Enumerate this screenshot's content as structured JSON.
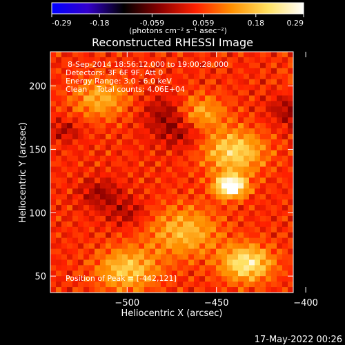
{
  "chart_data": {
    "type": "heatmap",
    "title": "Reconstructed RHESSI Image",
    "xlabel": "Heliocentric X (arcsec)",
    "ylabel": "Heliocentric Y (arcsec)",
    "xlim": [
      -543,
      -407
    ],
    "ylim": [
      37,
      227
    ],
    "x_ticks": [
      -500,
      -450,
      -400
    ],
    "y_ticks": [
      50,
      100,
      150,
      200
    ],
    "colorbar": {
      "unit_label": "(photons cm⁻² s⁻¹ asec⁻²)",
      "range": [
        -0.29,
        0.29
      ],
      "tick_labels": [
        "-0.29",
        "-0.18",
        "-0.059",
        "0.059",
        "0.18",
        "0.29"
      ],
      "colors": [
        "#0000ff",
        "#3300cc",
        "#000000",
        "#8a0000",
        "#ff2000",
        "#ff9000",
        "#ffe060",
        "#ffffff"
      ]
    },
    "info_lines": [
      "8-Sep-2014 18:56:12.000 to 19:00:28.000",
      "Detectors: 3F 6F 9F, Att 0",
      "Energy Range: 3.0 - 6.0 keV",
      "Clean    Total counts: 4.06E+04"
    ],
    "peak_label": "Position of Peak = [-442,121]",
    "peak": [
      -442,
      121
    ],
    "sources": [
      {
        "x": -442,
        "y": 121,
        "value": 0.29,
        "sigma": 6
      },
      {
        "x": -440,
        "y": 148,
        "value": 0.16,
        "sigma": 12
      },
      {
        "x": -433,
        "y": 60,
        "value": 0.19,
        "sigma": 10
      },
      {
        "x": -380,
        "y": 62,
        "value": 0.18,
        "sigma": 8
      },
      {
        "x": -383,
        "y": 102,
        "value": 0.13,
        "sigma": 9
      },
      {
        "x": -500,
        "y": 55,
        "value": 0.14,
        "sigma": 12
      },
      {
        "x": -515,
        "y": 190,
        "value": 0.11,
        "sigma": 11
      },
      {
        "x": -460,
        "y": 178,
        "value": 0.12,
        "sigma": 10
      },
      {
        "x": -393,
        "y": 205,
        "value": 0.08,
        "sigma": 10
      },
      {
        "x": -468,
        "y": 85,
        "value": 0.12,
        "sigma": 14
      },
      {
        "x": -470,
        "y": 165,
        "value": -0.08,
        "sigma": 10
      },
      {
        "x": -478,
        "y": 180,
        "value": -0.07,
        "sigma": 9
      },
      {
        "x": -395,
        "y": 172,
        "value": -0.08,
        "sigma": 9
      },
      {
        "x": -410,
        "y": 182,
        "value": -0.06,
        "sigma": 8
      },
      {
        "x": -515,
        "y": 115,
        "value": -0.07,
        "sigma": 8
      },
      {
        "x": -500,
        "y": 100,
        "value": -0.06,
        "sigma": 8
      },
      {
        "x": -535,
        "y": 165,
        "value": -0.06,
        "sigma": 6
      }
    ],
    "grid": false
  },
  "footer": {
    "timestamp": "17-May-2022 00:26"
  }
}
